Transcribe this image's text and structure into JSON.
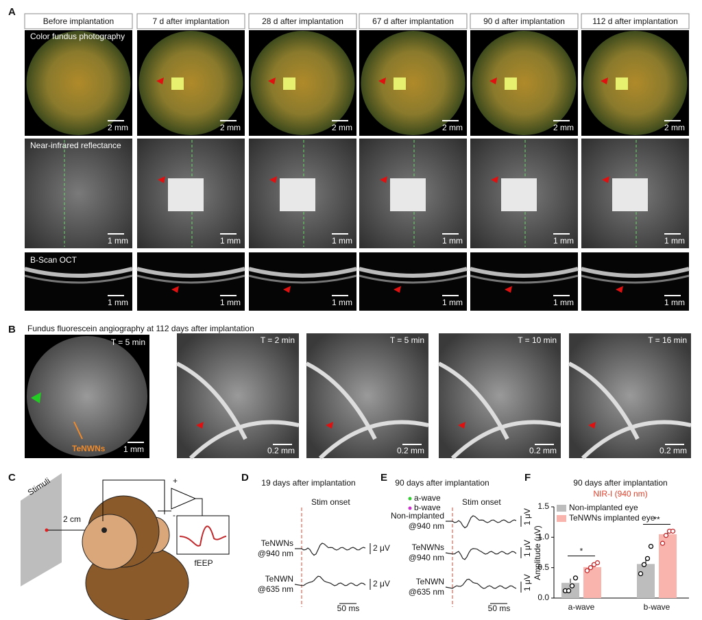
{
  "panels": {
    "A": {
      "label": "A",
      "headers": [
        "Before implantation",
        "7 d after implantation",
        "28 d after implantation",
        "67 d after implantation",
        "90 d after implantation",
        "112 d after implantation"
      ],
      "rows": [
        {
          "label": "Color fundus photography",
          "scale": [
            "2 mm",
            "2 mm",
            "2 mm",
            "2 mm",
            "2 mm",
            "2 mm"
          ]
        },
        {
          "label": "Near-infrared reflectance",
          "scale": [
            "1 mm",
            "1 mm",
            "1 mm",
            "1 mm",
            "1 mm",
            "1 mm"
          ]
        },
        {
          "label": "B-Scan OCT",
          "scale": [
            "1 mm",
            "1 mm",
            "1 mm",
            "1 mm",
            "1 mm",
            "1 mm"
          ]
        }
      ]
    },
    "B": {
      "label": "B",
      "title": "Fundus fluorescein angiography at 112 days after implantation",
      "times": [
        "T = 5 min",
        "T = 2 min",
        "T = 5 min",
        "T = 10 min",
        "T = 16 min"
      ],
      "scale": [
        "1 mm",
        "0.2 mm",
        "0.2 mm",
        "0.2 mm",
        "0.2 mm"
      ],
      "marker": "TeNWNs"
    },
    "C": {
      "label": "C",
      "stimuli": "Stimuli",
      "distance": "2 cm",
      "plus": "+",
      "minus": "-",
      "signal": "fEEP"
    },
    "D": {
      "label": "D",
      "title": "19 days after implantation",
      "onset": "Stim onset",
      "traces": [
        {
          "lines": [
            "TeNWNs",
            "@940 nm"
          ],
          "scale": "2 μV"
        },
        {
          "lines": [
            "TeNWN",
            "@635 nm"
          ],
          "scale": "2 μV"
        }
      ],
      "time_scale": "50 ms"
    },
    "E": {
      "label": "E",
      "title": "90 days after implantation",
      "onset": "Stim onset",
      "legend": [
        "a-wave",
        "b-wave"
      ],
      "traces": [
        {
          "lines": [
            "Non-implanted",
            "@940 nm"
          ],
          "scale": "1 μV"
        },
        {
          "lines": [
            "TeNWNs",
            "@940 nm"
          ],
          "scale": "1 μV"
        },
        {
          "lines": [
            "TeNWN",
            "@635 nm"
          ],
          "scale": "1 μV"
        }
      ],
      "time_scale": "50 ms"
    },
    "F": {
      "label": "F"
    }
  },
  "chart_data": {
    "type": "bar",
    "title": "90 days after implantation",
    "subtitle": "NIR-I (940 nm)",
    "y_label": "Amplitude (μV)",
    "categories": [
      "a-wave",
      "b-wave"
    ],
    "series": [
      {
        "name": "Non-implanted eye",
        "color": "#bdbdbd",
        "values": [
          0.25,
          0.56
        ],
        "errors": [
          0.07,
          0.1
        ],
        "points": [
          [
            0.12,
            0.12,
            0.2,
            0.33
          ],
          [
            0.4,
            0.55,
            0.65,
            0.85
          ]
        ]
      },
      {
        "name": "TeNWNs implanted eye",
        "color": "#f8b4ad",
        "values": [
          0.51,
          1.05
        ],
        "errors": [
          0.04,
          0.05
        ],
        "points": [
          [
            0.45,
            0.5,
            0.55,
            0.58
          ],
          [
            0.9,
            1.03,
            1.1,
            1.1
          ]
        ]
      }
    ],
    "significance": [
      "*",
      "**"
    ],
    "ylim": [
      0,
      1.5
    ],
    "yticks": [
      {
        "value": 0,
        "label": "0.0"
      },
      0.5,
      {
        "value": 1,
        "label": "1.0"
      },
      1.5
    ]
  }
}
